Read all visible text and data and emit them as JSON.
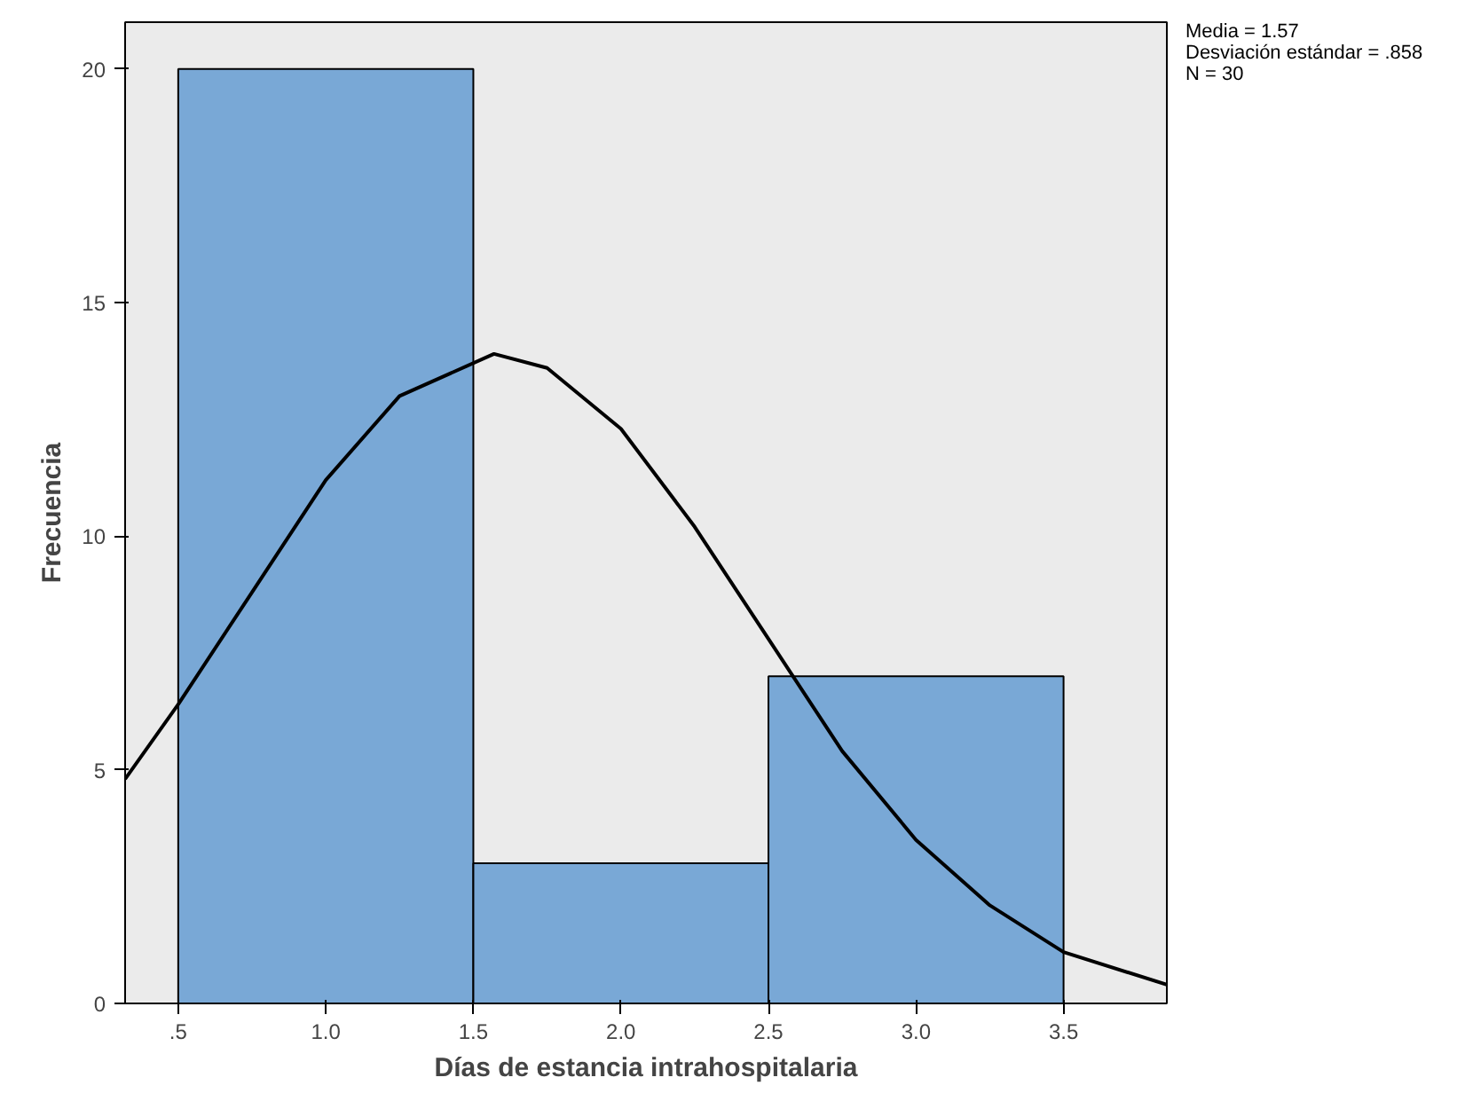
{
  "chart_data": {
    "type": "histogram",
    "xlabel": "Días de estancia intrahospitalaria",
    "ylabel": "Frecuencia",
    "annotations": [
      "Media = 1.57",
      "Desviación estándar = .858",
      "N = 30"
    ],
    "series": [
      {
        "bins": [
          0.5,
          1.5,
          2.5,
          3.5
        ],
        "values": [
          20,
          3,
          7
        ],
        "color": "#79a8d6"
      },
      {
        "type": "line",
        "color": "#000000",
        "x": [
          0.32,
          0.5,
          0.75,
          1.0,
          1.25,
          1.57,
          1.75,
          2.0,
          2.25,
          2.5,
          2.75,
          3.0,
          3.25,
          3.5,
          3.85
        ],
        "values": [
          4.8,
          6.4,
          8.8,
          11.2,
          13.0,
          13.9,
          13.6,
          12.3,
          10.2,
          7.8,
          5.4,
          3.5,
          2.1,
          1.1,
          0.4
        ]
      }
    ],
    "xlim": [
      0.32,
      3.85
    ],
    "ylim": [
      0,
      21
    ],
    "xticks": [
      {
        "value": 0.5,
        "label": ".5"
      },
      {
        "value": 1.0,
        "label": "1.0"
      },
      {
        "value": 1.5,
        "label": "1.5"
      },
      {
        "value": 2.0,
        "label": "2.0"
      },
      {
        "value": 2.5,
        "label": "2.5"
      },
      {
        "value": 3.0,
        "label": "3.0"
      },
      {
        "value": 3.5,
        "label": "3.5"
      }
    ],
    "yticks": [
      0,
      5,
      10,
      15,
      20
    ],
    "grid": false
  }
}
